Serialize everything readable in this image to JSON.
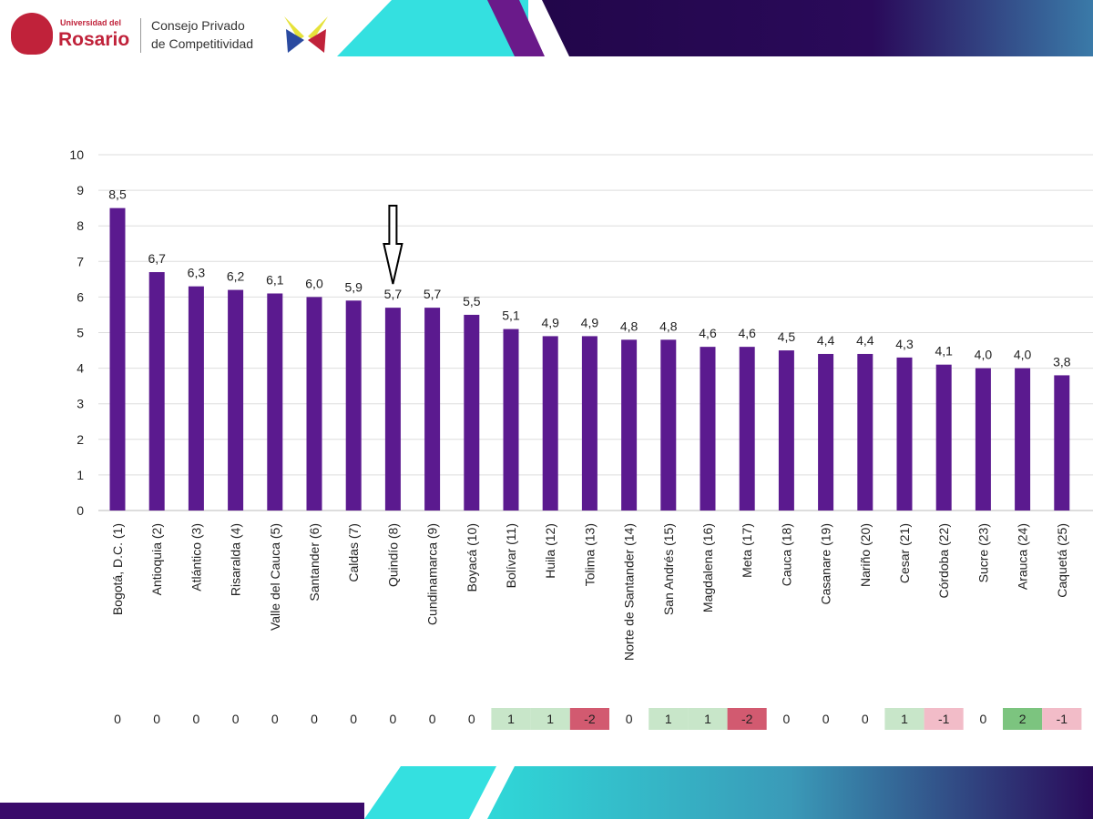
{
  "header": {
    "university_line1": "Universidad del",
    "university_line2": "Rosario",
    "council_line1": "Consejo Privado",
    "council_line2": "de Competitividad"
  },
  "chart_data": {
    "type": "bar",
    "title": "",
    "xlabel": "",
    "ylabel": "",
    "ylim": [
      0,
      10
    ],
    "yticks": [
      0,
      1,
      2,
      3,
      4,
      5,
      6,
      7,
      8,
      9,
      10
    ],
    "grid": true,
    "bar_color": "#5b1a8f",
    "categories": [
      "Bogotá, D.C. (1)",
      "Antioquia (2)",
      "Atlántico (3)",
      "Risaralda (4)",
      "Valle del Cauca (5)",
      "Santander (6)",
      "Caldas (7)",
      "Quindío (8)",
      "Cundinamarca (9)",
      "Boyacá (10)",
      "Bolívar (11)",
      "Huila (12)",
      "Tolima (13)",
      "Norte de Santander (14)",
      "San Andrés (15)",
      "Magdalena (16)",
      "Meta (17)",
      "Cauca (18)",
      "Casanare (19)",
      "Nariño (20)",
      "Cesar (21)",
      "Córdoba (22)",
      "Sucre (23)",
      "Arauca (24)",
      "Caquetá (25)"
    ],
    "values": [
      8.5,
      6.7,
      6.3,
      6.2,
      6.1,
      6.0,
      5.9,
      5.7,
      5.7,
      5.5,
      5.1,
      4.9,
      4.9,
      4.8,
      4.8,
      4.6,
      4.6,
      4.5,
      4.4,
      4.4,
      4.3,
      4.1,
      4.0,
      4.0,
      3.8
    ],
    "value_labels": [
      "8,5",
      "6,7",
      "6,3",
      "6,2",
      "6,1",
      "6,0",
      "5,9",
      "5,7",
      "5,7",
      "5,5",
      "5,1",
      "4,9",
      "4,9",
      "4,8",
      "4,8",
      "4,6",
      "4,6",
      "4,5",
      "4,4",
      "4,4",
      "4,3",
      "4,1",
      "4,0",
      "4,0",
      "3,8"
    ],
    "rank_changes": [
      "0",
      "0",
      "0",
      "0",
      "0",
      "0",
      "0",
      "0",
      "0",
      "0",
      "1",
      "1",
      "-2",
      "0",
      "1",
      "1",
      "-2",
      "0",
      "0",
      "0",
      "1",
      "-1",
      "0",
      "2",
      "-1"
    ],
    "annotation": {
      "type": "arrow-down",
      "target": "Quindío (8)"
    },
    "change_colors": {
      "1": "#c8e6c9",
      "2": "#7cc47f",
      "-1": "#f2bcc8",
      "-2": "#d25a70",
      "0": "#ffffff"
    }
  }
}
